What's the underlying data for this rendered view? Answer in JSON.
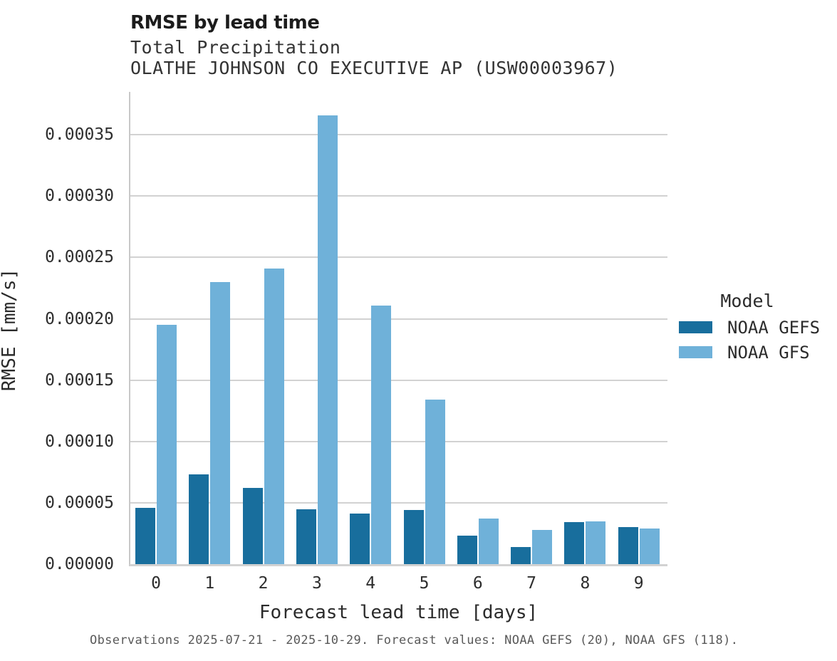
{
  "chart_data": {
    "type": "bar",
    "title": "RMSE by lead time",
    "subtitle": "Total Precipitation",
    "subtitle2": "OLATHE JOHNSON CO EXECUTIVE AP (USW00003967)",
    "xlabel": "Forecast lead time [days]",
    "ylabel": "RMSE [mm/s]",
    "categories": [
      "0",
      "1",
      "2",
      "3",
      "4",
      "5",
      "6",
      "7",
      "8",
      "9"
    ],
    "series": [
      {
        "name": "NOAA GEFS",
        "color": "#186e9d",
        "values": [
          4.6e-05,
          7.3e-05,
          6.2e-05,
          4.5e-05,
          4.1e-05,
          4.4e-05,
          2.3e-05,
          1.4e-05,
          3.4e-05,
          3e-05
        ]
      },
      {
        "name": "NOAA GFS",
        "color": "#6fb1d9",
        "values": [
          0.000195,
          0.00023,
          0.000241,
          0.000366,
          0.000211,
          0.000134,
          3.7e-05,
          2.8e-05,
          3.5e-05,
          2.9e-05
        ]
      }
    ],
    "ylim": [
      0,
      0.000385
    ],
    "yticks": [
      "0.00000",
      "0.00005",
      "0.00010",
      "0.00015",
      "0.00020",
      "0.00025",
      "0.00030",
      "0.00035"
    ],
    "grid": "horizontal",
    "legend_title": "Model",
    "legend_position": "right",
    "footer": "Observations 2025-07-21 - 2025-10-29. Forecast values: NOAA GEFS (20), NOAA GFS (118)."
  }
}
